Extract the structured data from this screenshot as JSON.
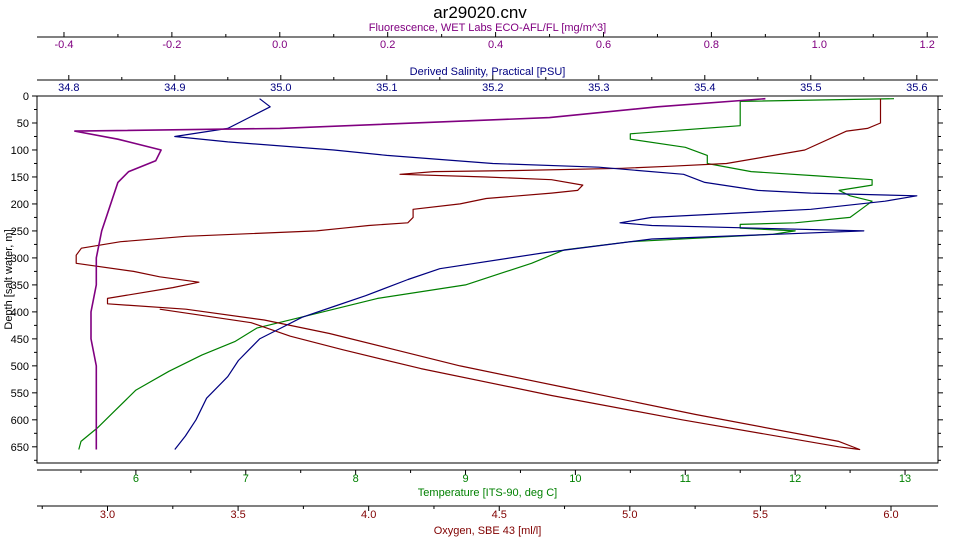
{
  "chart_data": {
    "type": "line",
    "title": "ar29020.cnv",
    "grid": false,
    "legend": "none",
    "y_axis": {
      "label": "Depth [salt water, m]",
      "range": [
        0,
        680
      ],
      "reversed": true,
      "ticks": [
        "0",
        "50",
        "100",
        "150",
        "200",
        "250",
        "300",
        "350",
        "400",
        "450",
        "500",
        "550",
        "600",
        "650"
      ]
    },
    "x_axes": [
      {
        "id": "fluorescence",
        "label": "Fluorescence, WET Labs ECO-AFL/FL [mg/m^3]",
        "position": "top",
        "color": "#800080",
        "range": [
          -0.45,
          1.22
        ],
        "ticks": [
          "-0.4",
          "-0.2",
          "0.0",
          "0.2",
          "0.4",
          "0.6",
          "0.8",
          "1.0",
          "1.2"
        ]
      },
      {
        "id": "salinity",
        "label": "Derived Salinity, Practical [PSU]",
        "position": "top",
        "color": "#000080",
        "range": [
          34.77,
          35.62
        ],
        "ticks": [
          "34.8",
          "34.9",
          "35.0",
          "35.1",
          "35.2",
          "35.3",
          "35.4",
          "35.5",
          "35.6"
        ]
      },
      {
        "id": "temperature",
        "label": "Temperature [ITS-90, deg C]",
        "position": "bottom",
        "color": "#008000",
        "range": [
          5.1,
          13.3
        ],
        "ticks": [
          "6",
          "7",
          "8",
          "9",
          "10",
          "11",
          "12",
          "13"
        ]
      },
      {
        "id": "oxygen",
        "label": "Oxygen, SBE 43 [ml/l]",
        "position": "bottom",
        "color": "#800000",
        "range": [
          2.73,
          6.18
        ],
        "ticks": [
          "3.0",
          "3.5",
          "4.0",
          "4.5",
          "5.0",
          "5.5",
          "6.0"
        ]
      }
    ],
    "series": [
      {
        "axis": "temperature",
        "color": "#008000",
        "points": [
          [
            12.9,
            5
          ],
          [
            11.5,
            10
          ],
          [
            11.5,
            30
          ],
          [
            11.5,
            55
          ],
          [
            10.5,
            70
          ],
          [
            10.5,
            80
          ],
          [
            11.0,
            95
          ],
          [
            11.2,
            110
          ],
          [
            11.2,
            125
          ],
          [
            11.6,
            140
          ],
          [
            12.2,
            148
          ],
          [
            12.7,
            155
          ],
          [
            12.7,
            165
          ],
          [
            12.4,
            175
          ],
          [
            12.5,
            185
          ],
          [
            12.7,
            195
          ],
          [
            12.6,
            210
          ],
          [
            12.5,
            225
          ],
          [
            12.0,
            235
          ],
          [
            11.5,
            238
          ],
          [
            11.5,
            245
          ],
          [
            12.0,
            250
          ],
          [
            11.8,
            256
          ],
          [
            10.5,
            270
          ],
          [
            9.9,
            285
          ],
          [
            9.6,
            310
          ],
          [
            9.3,
            330
          ],
          [
            9.0,
            350
          ],
          [
            8.2,
            375
          ],
          [
            7.7,
            400
          ],
          [
            7.1,
            430
          ],
          [
            6.9,
            455
          ],
          [
            6.6,
            480
          ],
          [
            6.3,
            510
          ],
          [
            6.0,
            545
          ],
          [
            5.8,
            585
          ],
          [
            5.65,
            615
          ],
          [
            5.5,
            640
          ],
          [
            5.48,
            655
          ]
        ]
      },
      {
        "axis": "oxygen",
        "color": "#800000",
        "points": [
          [
            5.96,
            5
          ],
          [
            5.96,
            50
          ],
          [
            5.91,
            60
          ],
          [
            5.83,
            65
          ],
          [
            5.67,
            100
          ],
          [
            5.37,
            125
          ],
          [
            5.16,
            130
          ],
          [
            4.97,
            134
          ],
          [
            4.57,
            138
          ],
          [
            4.25,
            140
          ],
          [
            4.12,
            145
          ],
          [
            4.45,
            150
          ],
          [
            4.7,
            155
          ],
          [
            4.82,
            165
          ],
          [
            4.8,
            175
          ],
          [
            4.7,
            180
          ],
          [
            4.45,
            190
          ],
          [
            4.35,
            200
          ],
          [
            4.17,
            210
          ],
          [
            4.17,
            225
          ],
          [
            4.15,
            235
          ],
          [
            4.0,
            240
          ],
          [
            3.9,
            245
          ],
          [
            3.8,
            250
          ],
          [
            3.3,
            260
          ],
          [
            3.05,
            270
          ],
          [
            2.9,
            282
          ],
          [
            2.88,
            295
          ],
          [
            2.88,
            310
          ],
          [
            3.1,
            325
          ],
          [
            3.2,
            335
          ],
          [
            3.35,
            345
          ],
          [
            3.25,
            355
          ],
          [
            3.0,
            375
          ],
          [
            3.0,
            385
          ],
          [
            3.3,
            395
          ],
          [
            3.6,
            415
          ],
          [
            3.85,
            440
          ],
          [
            4.1,
            470
          ],
          [
            4.35,
            500
          ],
          [
            4.75,
            540
          ],
          [
            5.25,
            590
          ],
          [
            5.8,
            640
          ],
          [
            5.88,
            655
          ],
          [
            5.8,
            650
          ],
          [
            5.2,
            600
          ],
          [
            4.7,
            555
          ],
          [
            4.2,
            505
          ],
          [
            3.9,
            470
          ],
          [
            3.7,
            445
          ],
          [
            3.55,
            420
          ],
          [
            3.2,
            395
          ]
        ]
      },
      {
        "axis": "salinity",
        "color": "#000080",
        "points": [
          [
            34.98,
            5
          ],
          [
            34.99,
            20
          ],
          [
            34.97,
            40
          ],
          [
            34.95,
            60
          ],
          [
            34.9,
            75
          ],
          [
            34.95,
            85
          ],
          [
            35.05,
            100
          ],
          [
            35.1,
            110
          ],
          [
            35.2,
            125
          ],
          [
            35.3,
            132
          ],
          [
            35.38,
            145
          ],
          [
            35.4,
            160
          ],
          [
            35.45,
            175
          ],
          [
            35.5,
            180
          ],
          [
            35.6,
            185
          ],
          [
            35.57,
            195
          ],
          [
            35.5,
            210
          ],
          [
            35.35,
            225
          ],
          [
            35.32,
            235
          ],
          [
            35.35,
            240
          ],
          [
            35.45,
            245
          ],
          [
            35.55,
            250
          ],
          [
            35.35,
            265
          ],
          [
            35.25,
            290
          ],
          [
            35.15,
            320
          ],
          [
            35.12,
            340
          ],
          [
            35.08,
            370
          ],
          [
            35.05,
            390
          ],
          [
            35.02,
            410
          ],
          [
            35.0,
            430
          ],
          [
            34.98,
            450
          ],
          [
            34.97,
            470
          ],
          [
            34.96,
            490
          ],
          [
            34.95,
            520
          ],
          [
            34.93,
            560
          ],
          [
            34.92,
            600
          ],
          [
            34.91,
            630
          ],
          [
            34.9,
            655
          ]
        ]
      },
      {
        "axis": "fluorescence",
        "color": "#800080",
        "points": [
          [
            0.9,
            5
          ],
          [
            0.7,
            20
          ],
          [
            0.5,
            40
          ],
          [
            0.0,
            60
          ],
          [
            -0.38,
            65
          ],
          [
            -0.3,
            80
          ],
          [
            -0.22,
            100
          ],
          [
            -0.23,
            120
          ],
          [
            -0.28,
            140
          ],
          [
            -0.3,
            160
          ],
          [
            -0.31,
            190
          ],
          [
            -0.32,
            220
          ],
          [
            -0.33,
            250
          ],
          [
            -0.34,
            300
          ],
          [
            -0.34,
            350
          ],
          [
            -0.35,
            400
          ],
          [
            -0.35,
            450
          ],
          [
            -0.34,
            500
          ],
          [
            -0.34,
            550
          ],
          [
            -0.34,
            600
          ],
          [
            -0.34,
            655
          ]
        ]
      }
    ]
  }
}
